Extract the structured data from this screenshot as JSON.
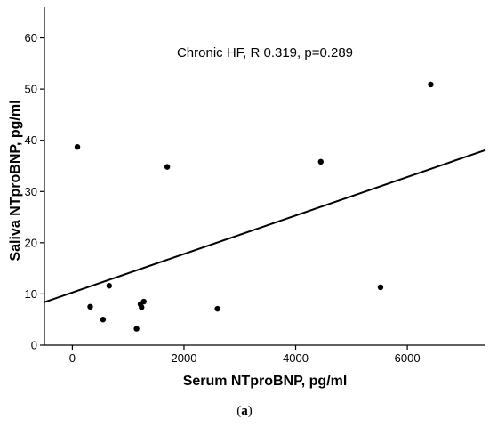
{
  "caption": {
    "prefix": "(",
    "letter": "a",
    "suffix": ")"
  },
  "chart_data": {
    "type": "scatter",
    "xlabel": "Serum NTproBNP, pg/ml",
    "ylabel": "Saliva NTproBNP, pg/ml",
    "annotation": "Chronic HF, R 0.319, p=0.289",
    "xlim": [
      -500,
      7400
    ],
    "ylim": [
      0,
      66
    ],
    "xticks": [
      0,
      2000,
      4000,
      6000
    ],
    "yticks": [
      0,
      10,
      20,
      30,
      40,
      50,
      60
    ],
    "grid": false,
    "legend": "none",
    "colors": {
      "points": "#000000",
      "line": "#000000"
    },
    "points": [
      {
        "x": 90,
        "y": 38.7
      },
      {
        "x": 320,
        "y": 7.5
      },
      {
        "x": 550,
        "y": 5.0
      },
      {
        "x": 660,
        "y": 11.6
      },
      {
        "x": 1150,
        "y": 3.2
      },
      {
        "x": 1220,
        "y": 8.0
      },
      {
        "x": 1240,
        "y": 7.4
      },
      {
        "x": 1280,
        "y": 8.5
      },
      {
        "x": 1700,
        "y": 34.8
      },
      {
        "x": 2600,
        "y": 7.1
      },
      {
        "x": 4450,
        "y": 35.8
      },
      {
        "x": 5520,
        "y": 11.3
      },
      {
        "x": 6420,
        "y": 50.9
      }
    ],
    "fit_line": {
      "x": [
        -500,
        7400
      ],
      "y": [
        8.4,
        38.1
      ]
    }
  }
}
